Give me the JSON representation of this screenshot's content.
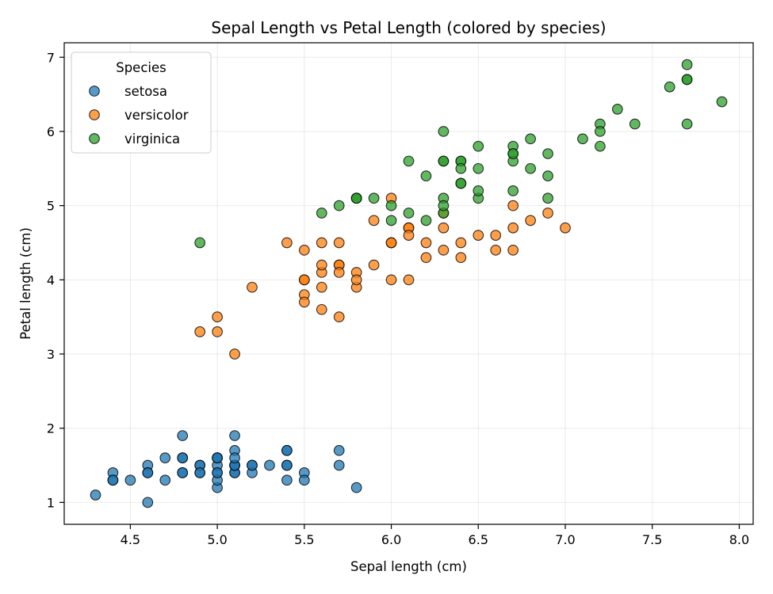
{
  "chart_data": {
    "type": "scatter",
    "title": "Sepal Length vs Petal Length (colored by species)",
    "xlabel": "Sepal length (cm)",
    "ylabel": "Petal length (cm)",
    "xlim": [
      4.12,
      8.08
    ],
    "ylim": [
      0.705,
      7.195
    ],
    "xticks": [
      4.5,
      5.0,
      5.5,
      6.0,
      6.5,
      7.0,
      7.5,
      8.0
    ],
    "xtick_labels": [
      "4.5",
      "5.0",
      "5.5",
      "6.0",
      "6.5",
      "7.0",
      "7.5",
      "8.0"
    ],
    "yticks": [
      1,
      2,
      3,
      4,
      5,
      6,
      7
    ],
    "ytick_labels": [
      "1",
      "2",
      "3",
      "4",
      "5",
      "6",
      "7"
    ],
    "grid": true,
    "legend": {
      "title": "Species",
      "placement": "top-left"
    },
    "series": [
      {
        "name": "setosa",
        "color": "#1f77b4",
        "points": [
          [
            5.1,
            1.4
          ],
          [
            4.9,
            1.4
          ],
          [
            4.7,
            1.3
          ],
          [
            4.6,
            1.5
          ],
          [
            5.0,
            1.4
          ],
          [
            5.4,
            1.7
          ],
          [
            4.6,
            1.4
          ],
          [
            5.0,
            1.5
          ],
          [
            4.4,
            1.4
          ],
          [
            4.9,
            1.5
          ],
          [
            5.4,
            1.5
          ],
          [
            4.8,
            1.6
          ],
          [
            4.8,
            1.4
          ],
          [
            4.3,
            1.1
          ],
          [
            5.8,
            1.2
          ],
          [
            5.7,
            1.5
          ],
          [
            5.4,
            1.3
          ],
          [
            5.1,
            1.4
          ],
          [
            5.7,
            1.7
          ],
          [
            5.1,
            1.5
          ],
          [
            5.4,
            1.7
          ],
          [
            5.1,
            1.5
          ],
          [
            4.6,
            1.0
          ],
          [
            5.1,
            1.7
          ],
          [
            4.8,
            1.9
          ],
          [
            5.0,
            1.6
          ],
          [
            5.0,
            1.6
          ],
          [
            5.2,
            1.5
          ],
          [
            5.2,
            1.4
          ],
          [
            4.7,
            1.6
          ],
          [
            4.8,
            1.6
          ],
          [
            5.4,
            1.5
          ],
          [
            5.2,
            1.5
          ],
          [
            5.5,
            1.4
          ],
          [
            4.9,
            1.5
          ],
          [
            5.0,
            1.2
          ],
          [
            5.5,
            1.3
          ],
          [
            4.9,
            1.4
          ],
          [
            4.4,
            1.3
          ],
          [
            5.1,
            1.5
          ],
          [
            5.0,
            1.3
          ],
          [
            4.5,
            1.3
          ],
          [
            4.4,
            1.3
          ],
          [
            5.0,
            1.6
          ],
          [
            5.1,
            1.9
          ],
          [
            4.8,
            1.4
          ],
          [
            5.1,
            1.6
          ],
          [
            4.6,
            1.4
          ],
          [
            5.3,
            1.5
          ],
          [
            5.0,
            1.4
          ]
        ]
      },
      {
        "name": "versicolor",
        "color": "#ff7f0e",
        "points": [
          [
            7.0,
            4.7
          ],
          [
            6.4,
            4.5
          ],
          [
            6.9,
            4.9
          ],
          [
            5.5,
            4.0
          ],
          [
            6.5,
            4.6
          ],
          [
            5.7,
            4.5
          ],
          [
            6.3,
            4.7
          ],
          [
            4.9,
            3.3
          ],
          [
            6.6,
            4.6
          ],
          [
            5.2,
            3.9
          ],
          [
            5.0,
            3.5
          ],
          [
            5.9,
            4.2
          ],
          [
            6.0,
            4.0
          ],
          [
            6.1,
            4.7
          ],
          [
            5.6,
            3.6
          ],
          [
            6.7,
            4.4
          ],
          [
            5.6,
            4.5
          ],
          [
            5.8,
            4.1
          ],
          [
            6.2,
            4.5
          ],
          [
            5.6,
            3.9
          ],
          [
            5.9,
            4.8
          ],
          [
            6.1,
            4.0
          ],
          [
            6.3,
            4.9
          ],
          [
            6.1,
            4.7
          ],
          [
            6.4,
            4.3
          ],
          [
            6.6,
            4.4
          ],
          [
            6.8,
            4.8
          ],
          [
            6.7,
            5.0
          ],
          [
            6.0,
            4.5
          ],
          [
            5.7,
            3.5
          ],
          [
            5.5,
            3.8
          ],
          [
            5.5,
            3.7
          ],
          [
            5.8,
            3.9
          ],
          [
            6.0,
            5.1
          ],
          [
            5.4,
            4.5
          ],
          [
            6.0,
            4.5
          ],
          [
            6.7,
            4.7
          ],
          [
            6.3,
            4.4
          ],
          [
            5.6,
            4.1
          ],
          [
            5.5,
            4.0
          ],
          [
            5.5,
            4.4
          ],
          [
            6.1,
            4.6
          ],
          [
            5.8,
            4.0
          ],
          [
            5.0,
            3.3
          ],
          [
            5.6,
            4.2
          ],
          [
            5.7,
            4.2
          ],
          [
            5.7,
            4.2
          ],
          [
            6.2,
            4.3
          ],
          [
            5.1,
            3.0
          ],
          [
            5.7,
            4.1
          ]
        ]
      },
      {
        "name": "virginica",
        "color": "#2ca02c",
        "points": [
          [
            6.3,
            6.0
          ],
          [
            5.8,
            5.1
          ],
          [
            7.1,
            5.9
          ],
          [
            6.3,
            5.6
          ],
          [
            6.5,
            5.8
          ],
          [
            7.6,
            6.6
          ],
          [
            4.9,
            4.5
          ],
          [
            7.3,
            6.3
          ],
          [
            6.7,
            5.8
          ],
          [
            7.2,
            6.1
          ],
          [
            6.5,
            5.1
          ],
          [
            6.4,
            5.3
          ],
          [
            6.8,
            5.5
          ],
          [
            5.7,
            5.0
          ],
          [
            5.8,
            5.1
          ],
          [
            6.4,
            5.3
          ],
          [
            6.5,
            5.5
          ],
          [
            7.7,
            6.7
          ],
          [
            7.7,
            6.9
          ],
          [
            6.0,
            5.0
          ],
          [
            6.9,
            5.7
          ],
          [
            5.6,
            4.9
          ],
          [
            7.7,
            6.7
          ],
          [
            6.3,
            4.9
          ],
          [
            6.7,
            5.7
          ],
          [
            7.2,
            6.0
          ],
          [
            6.2,
            4.8
          ],
          [
            6.1,
            4.9
          ],
          [
            6.4,
            5.6
          ],
          [
            7.2,
            5.8
          ],
          [
            7.4,
            6.1
          ],
          [
            7.9,
            6.4
          ],
          [
            6.4,
            5.6
          ],
          [
            6.3,
            5.1
          ],
          [
            6.1,
            5.6
          ],
          [
            7.7,
            6.1
          ],
          [
            6.3,
            5.6
          ],
          [
            6.4,
            5.5
          ],
          [
            6.0,
            4.8
          ],
          [
            6.9,
            5.4
          ],
          [
            6.7,
            5.6
          ],
          [
            6.9,
            5.1
          ],
          [
            5.8,
            5.1
          ],
          [
            6.8,
            5.9
          ],
          [
            6.7,
            5.7
          ],
          [
            6.7,
            5.2
          ],
          [
            6.3,
            5.0
          ],
          [
            6.5,
            5.2
          ],
          [
            6.2,
            5.4
          ],
          [
            5.9,
            5.1
          ]
        ]
      }
    ]
  }
}
